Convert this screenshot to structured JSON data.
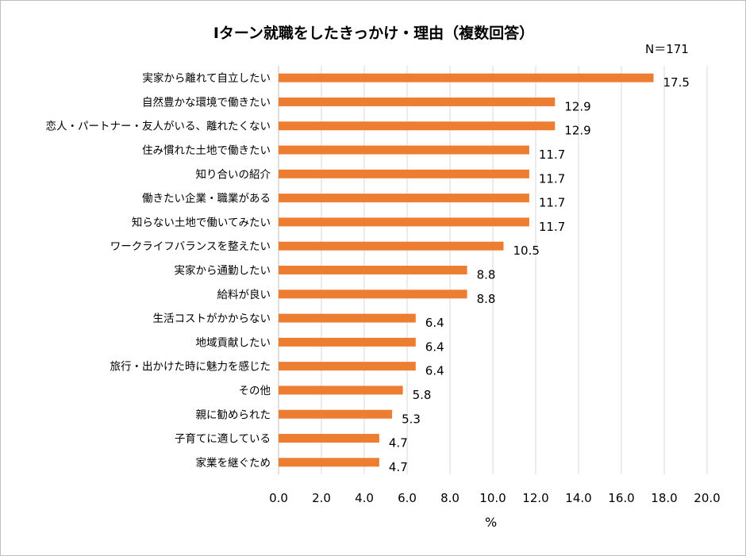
{
  "chart_data": {
    "type": "bar",
    "title": "Iターン就職をしたきっかけ・理由（複数回答）",
    "note": "N＝171",
    "xlabel": "%",
    "ylabel": "",
    "xlim": [
      0,
      20
    ],
    "xticks": [
      "0.0",
      "2.0",
      "4.0",
      "6.0",
      "8.0",
      "10.0",
      "12.0",
      "14.0",
      "16.0",
      "18.0",
      "20.0"
    ],
    "grid": true,
    "color": "#ED7D31",
    "categories": [
      "実家から離れて自立したい",
      "自然豊かな環境で働きたい",
      "恋人・パートナー・友人がいる、離れたくない",
      "住み慣れた土地で働きたい",
      "知り合いの紹介",
      "働きたい企業・職業がある",
      "知らない土地で働いてみたい",
      "ワークライフバランスを整えたい",
      "実家から通勤したい",
      "給料が良い",
      "生活コストがかからない",
      "地域貢献したい",
      "旅行・出かけた時に魅力を感じた",
      "その他",
      "親に勧められた",
      "子育てに適している",
      "家業を継ぐため"
    ],
    "values": [
      17.5,
      12.9,
      12.9,
      11.7,
      11.7,
      11.7,
      11.7,
      10.5,
      8.8,
      8.8,
      6.4,
      6.4,
      6.4,
      5.8,
      5.3,
      4.7,
      4.7
    ],
    "labels": [
      "17.5",
      "12.9",
      "12.9",
      "11.7",
      "11.7",
      "11.7",
      "11.7",
      "10.5",
      "8.8",
      "8.8",
      "6.4",
      "6.4",
      "6.4",
      "5.8",
      "5.3",
      "4.7",
      "4.7"
    ]
  }
}
